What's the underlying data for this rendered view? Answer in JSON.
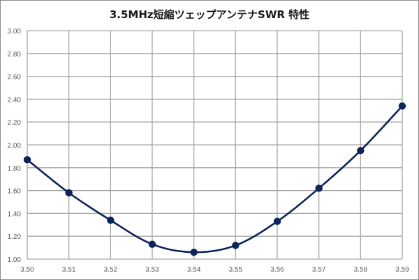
{
  "chart_data": {
    "type": "line",
    "title": "3.5MHz短縮ツェップアンテナSWR 特性",
    "xlabel": "",
    "ylabel": "",
    "x": [
      3.5,
      3.51,
      3.52,
      3.53,
      3.54,
      3.55,
      3.56,
      3.57,
      3.58,
      3.59
    ],
    "x_tick_labels": [
      "3.50",
      "3.51",
      "3.52",
      "3.53",
      "3.54",
      "3.55",
      "3.56",
      "3.57",
      "3.58",
      "3.59"
    ],
    "series": [
      {
        "name": "SWR",
        "values": [
          1.87,
          1.58,
          1.34,
          1.13,
          1.06,
          1.12,
          1.33,
          1.62,
          1.95,
          2.34
        ],
        "color": "#0d2359",
        "smooth": true,
        "markers": "circle"
      }
    ],
    "ylim": [
      1.0,
      3.0
    ],
    "y_ticks": [
      1.0,
      1.2,
      1.4,
      1.6,
      1.8,
      2.0,
      2.2,
      2.4,
      2.6,
      2.8,
      3.0
    ],
    "y_tick_labels": [
      "1.00",
      "1.20",
      "1.40",
      "1.60",
      "1.80",
      "2.00",
      "2.20",
      "2.40",
      "2.60",
      "2.80",
      "3.00"
    ],
    "grid": true,
    "legend": "none"
  }
}
